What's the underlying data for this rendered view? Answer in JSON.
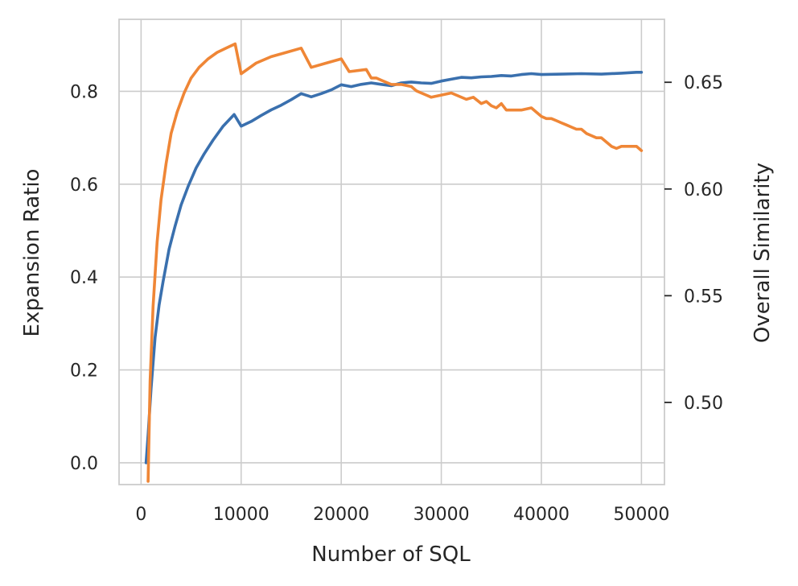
{
  "chart_data": {
    "type": "line",
    "title": "",
    "xlabel": "Number of SQL",
    "ylabel_left": "Expansion Ratio",
    "ylabel_right": "Overall Similarity",
    "xlim": [
      -2200,
      52300
    ],
    "ylim_left": [
      -0.047,
      0.955
    ],
    "ylim_right": [
      0.4615,
      0.6795
    ],
    "x_ticks": [
      0,
      10000,
      20000,
      30000,
      40000,
      50000
    ],
    "x_tick_labels": [
      "0",
      "10000",
      "20000",
      "30000",
      "40000",
      "50000"
    ],
    "y_left_ticks": [
      0.0,
      0.2,
      0.4,
      0.6,
      0.8
    ],
    "y_left_tick_labels": [
      "0.0",
      "0.2",
      "0.4",
      "0.6",
      "0.8"
    ],
    "y_right_ticks": [
      0.5,
      0.55,
      0.6,
      0.65
    ],
    "y_right_tick_labels": [
      "0.50",
      "0.55",
      "0.60",
      "0.65"
    ],
    "grid": true,
    "series": [
      {
        "name": "Expansion Ratio",
        "axis": "left",
        "color": "#3a70ae",
        "x": [
          500,
          700,
          1000,
          1400,
          1800,
          2200,
          2800,
          3400,
          4000,
          4700,
          5500,
          6300,
          7200,
          8200,
          9300,
          10000,
          11000,
          12000,
          13000,
          14000,
          15000,
          16000,
          17000,
          18000,
          19000,
          20000,
          21000,
          22000,
          23000,
          24000,
          25000,
          26000,
          27000,
          28000,
          29000,
          30000,
          31000,
          32000,
          33000,
          34000,
          35000,
          36000,
          37000,
          38000,
          39000,
          40000,
          42000,
          44000,
          46000,
          48000,
          49500,
          50000
        ],
        "y": [
          0.0,
          0.06,
          0.16,
          0.27,
          0.34,
          0.39,
          0.46,
          0.51,
          0.555,
          0.595,
          0.635,
          0.665,
          0.695,
          0.725,
          0.75,
          0.725,
          0.735,
          0.748,
          0.76,
          0.77,
          0.782,
          0.795,
          0.788,
          0.795,
          0.803,
          0.814,
          0.81,
          0.815,
          0.818,
          0.815,
          0.812,
          0.818,
          0.82,
          0.818,
          0.817,
          0.822,
          0.826,
          0.83,
          0.829,
          0.831,
          0.832,
          0.834,
          0.833,
          0.836,
          0.838,
          0.836,
          0.837,
          0.838,
          0.837,
          0.839,
          0.841,
          0.841
        ]
      },
      {
        "name": "Overall Similarity",
        "axis": "right",
        "color": "#ef8636",
        "x": [
          700,
          900,
          1200,
          1600,
          2000,
          2500,
          3000,
          3600,
          4300,
          5000,
          5800,
          6700,
          7600,
          8500,
          9400,
          10000,
          11500,
          13000,
          14500,
          16000,
          17000,
          18500,
          20000,
          20800,
          22500,
          23000,
          23500,
          24000,
          25000,
          26000,
          27000,
          27500,
          28000,
          28500,
          29000,
          30000,
          31000,
          32500,
          33200,
          34000,
          34500,
          35000,
          35500,
          36000,
          36500,
          37000,
          38000,
          39000,
          40000,
          40500,
          41000,
          41500,
          42000,
          42500,
          43000,
          43500,
          44000,
          44500,
          45000,
          45500,
          46000,
          47000,
          47500,
          48000,
          49000,
          49500,
          50000
        ],
        "y": [
          0.463,
          0.51,
          0.545,
          0.575,
          0.595,
          0.612,
          0.626,
          0.636,
          0.645,
          0.652,
          0.657,
          0.661,
          0.664,
          0.666,
          0.668,
          0.654,
          0.659,
          0.662,
          0.664,
          0.666,
          0.657,
          0.659,
          0.661,
          0.655,
          0.656,
          0.652,
          0.652,
          0.651,
          0.649,
          0.649,
          0.648,
          0.646,
          0.645,
          0.644,
          0.643,
          0.644,
          0.645,
          0.642,
          0.643,
          0.64,
          0.641,
          0.639,
          0.638,
          0.64,
          0.637,
          0.637,
          0.637,
          0.638,
          0.634,
          0.633,
          0.633,
          0.632,
          0.631,
          0.63,
          0.629,
          0.628,
          0.628,
          0.626,
          0.625,
          0.624,
          0.624,
          0.62,
          0.619,
          0.62,
          0.62,
          0.62,
          0.618
        ]
      }
    ]
  }
}
